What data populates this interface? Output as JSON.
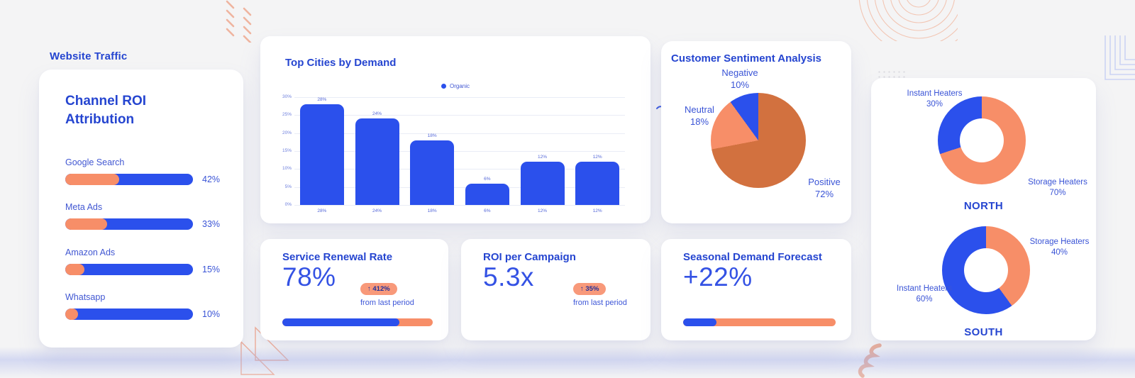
{
  "page": {
    "heading": "Website Traffic"
  },
  "colors": {
    "accent_blue": "#2b50ec",
    "heading_blue": "#2545d0",
    "salmon": "#f78e68",
    "dark_orange": "#d2713f",
    "badge_bg": "#f8997a",
    "card_bg": "#ffffff",
    "page_bg": "#f4f4f5"
  },
  "channel_roi": {
    "title": "Channel ROI Attribution",
    "items": [
      {
        "label": "Google Search",
        "value_label": "42%",
        "pct": 42
      },
      {
        "label": "Meta Ads",
        "value_label": "33%",
        "pct": 33
      },
      {
        "label": "Amazon Ads",
        "value_label": "15%",
        "pct": 15
      },
      {
        "label": "Whatsapp",
        "value_label": "10%",
        "pct": 10
      }
    ]
  },
  "chart_data": [
    {
      "id": "top_cities",
      "type": "bar",
      "title": "Top Cities by Demand",
      "legend": [
        {
          "label": "Organic",
          "color": "#2b50ec"
        }
      ],
      "legend_position": "top-center",
      "categories": [
        "28%",
        "24%",
        "18%",
        "6%",
        "12%",
        "12%"
      ],
      "values": [
        28,
        24,
        18,
        6,
        12,
        12
      ],
      "value_labels": [
        "28%",
        "24%",
        "18%",
        "6%",
        "12%",
        "12%"
      ],
      "ylim": [
        0,
        30
      ],
      "yticks": [
        0,
        5,
        10,
        15,
        20,
        25,
        30
      ],
      "ytick_labels": [
        "0%",
        "5%",
        "10%",
        "15%",
        "20%",
        "25%",
        "30%"
      ],
      "grid": true,
      "bar_color": "#2b50ec"
    },
    {
      "id": "sentiment",
      "type": "pie",
      "title": "Customer Sentiment Analysis",
      "slices": [
        {
          "label": "Positive",
          "value": 72,
          "display": "72%",
          "color": "#d2713f"
        },
        {
          "label": "Neutral",
          "value": 18,
          "display": "18%",
          "color": "#f78e68"
        },
        {
          "label": "Negative",
          "value": 10,
          "display": "10%",
          "color": "#2b50ec"
        }
      ]
    },
    {
      "id": "north",
      "type": "donut",
      "title": "NORTH",
      "slices": [
        {
          "label": "Storage Heaters",
          "value": 70,
          "display": "70%",
          "color": "#f78e68"
        },
        {
          "label": "Instant Heaters",
          "value": 30,
          "display": "30%",
          "color": "#2b50ec"
        }
      ]
    },
    {
      "id": "south",
      "type": "donut",
      "title": "SOUTH",
      "slices": [
        {
          "label": "Storage Heaters",
          "value": 40,
          "display": "40%",
          "color": "#f78e68"
        },
        {
          "label": "Instant Heaters",
          "value": 60,
          "display": "60%",
          "color": "#2b50ec"
        }
      ]
    }
  ],
  "kpis": [
    {
      "title": "Service Renewal Rate",
      "value": "78%",
      "badge": "↑ 412%",
      "badge_note": "from last period",
      "progress_pct": 78
    },
    {
      "title": "ROI per Campaign",
      "value": "5.3x",
      "badge": "↑ 35%",
      "badge_note": "from last period"
    },
    {
      "title": "Seasonal Demand Forecast",
      "value": "+22%",
      "progress_pct": 22
    }
  ]
}
